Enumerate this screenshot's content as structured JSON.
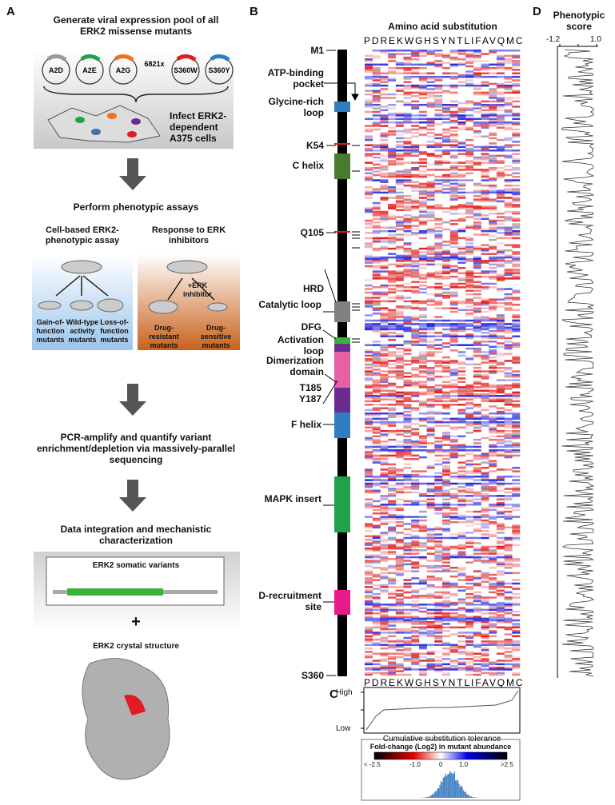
{
  "panel_a": {
    "letter": "A",
    "step1": "Generate viral expression pool of all ERK2 missense mutants",
    "mutants": [
      "A2D",
      "A2E",
      "A2G",
      "6821x",
      "S360W",
      "S360Y"
    ],
    "infect": "Infect ERK2-dependent A375 cells",
    "step2": "Perform phenotypic assays",
    "assay1": "Cell-based ERK2-phenotypic assay",
    "assay2": "Response to ERK inhibitors",
    "inhibitor": "+ERK inhibitor",
    "outcomes1": [
      "Gain-of-function mutants",
      "Wild-type activity mutants",
      "Loss-of-function mutants"
    ],
    "outcomes2": [
      "Drug-resistant mutants",
      "Drug-sensitive mutants"
    ],
    "step3": "PCR-amplify and quantify variant enrichment/depletion via massively-parallel sequencing",
    "step4": "Data integration and mechanistic characterization",
    "variants": "ERK2 somatic variants",
    "plus": "+",
    "structure": "ERK2 crystal structure"
  },
  "panel_b": {
    "letter": "B",
    "title": "Amino acid substitution",
    "amino_acids": "PDREKWGHSYNTLIFAVQMC",
    "labels": [
      "M1",
      "ATP-binding pocket",
      "Glycine-rich loop",
      "K54",
      "C helix",
      "Q105",
      "HRD",
      "Catalytic loop",
      "DFG",
      "Activation loop",
      "Dimerization domain",
      "T185",
      "Y187",
      "F helix",
      "MAPK insert",
      "D-recruitment site",
      "S360"
    ]
  },
  "panel_c": {
    "letter": "C",
    "high": "High",
    "low": "Low",
    "axis_label": "Cumulative substitution tolerance",
    "legend_title": "Fold-change (Log2) in mutant abundance",
    "legend_ticks": [
      "< -2.5",
      "-1.0",
      "0",
      "1.0",
      ">2.5"
    ]
  },
  "panel_d": {
    "letter": "D",
    "title": "Phenotypic score",
    "ticks": [
      "-1.2",
      "1.0"
    ]
  }
}
